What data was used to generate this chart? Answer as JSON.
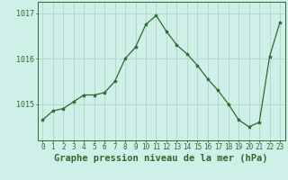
{
  "x": [
    0,
    1,
    2,
    3,
    4,
    5,
    6,
    7,
    8,
    9,
    10,
    11,
    12,
    13,
    14,
    15,
    16,
    17,
    18,
    19,
    20,
    21,
    22,
    23
  ],
  "y": [
    1014.65,
    1014.85,
    1014.9,
    1015.05,
    1015.2,
    1015.2,
    1015.25,
    1015.5,
    1016.0,
    1016.25,
    1016.75,
    1016.95,
    1016.6,
    1016.3,
    1016.1,
    1015.85,
    1015.55,
    1015.3,
    1015.0,
    1014.65,
    1014.5,
    1014.6,
    1016.05,
    1016.8
  ],
  "line_color": "#2d6a2d",
  "marker": "*",
  "marker_size": 3,
  "bg_color": "#cff0e8",
  "grid_color": "#b8d8cc",
  "axis_color": "#2d6a2d",
  "tick_color": "#2d6a2d",
  "label_color": "#2d6a2d",
  "xlabel": "Graphe pression niveau de la mer (hPa)",
  "ylim_min": 1014.2,
  "ylim_max": 1017.25,
  "yticks": [
    1015,
    1016,
    1017
  ],
  "xlabel_fontsize": 7.5,
  "tick_fontsize": 5.5
}
